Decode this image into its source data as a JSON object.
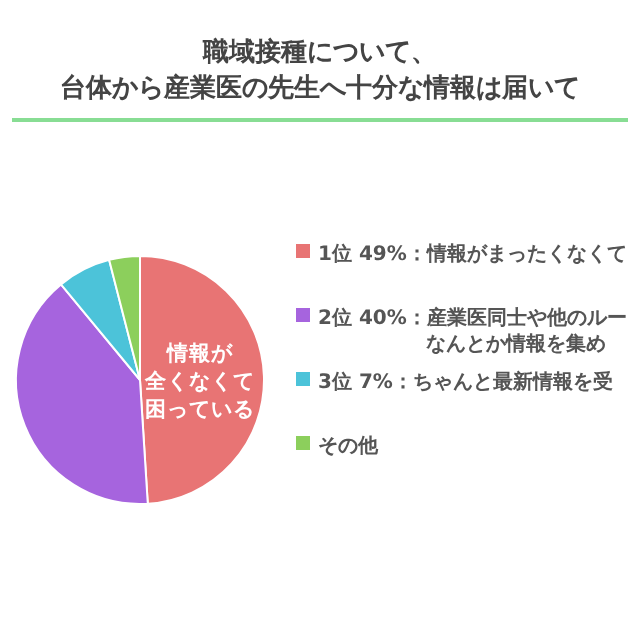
{
  "chart_data": {
    "type": "pie",
    "title": "職域接種について、",
    "subtitle": "台体から産業医の先生へ十分な情報は届いて",
    "categories": [
      "1位 49%：情報がまったくなくて",
      "2位 40%：産業医同士や他のルーなんとか情報を集め",
      "3位 7%：ちゃんと最新情報を受",
      "その他"
    ],
    "values": [
      49,
      40,
      7,
      4
    ],
    "colors": [
      "#e87474",
      "#a664de",
      "#4cc3d9",
      "#8ccf5c"
    ],
    "annotations": [
      "情報が",
      "全くなくて",
      "困っている"
    ],
    "legend": "right"
  }
}
